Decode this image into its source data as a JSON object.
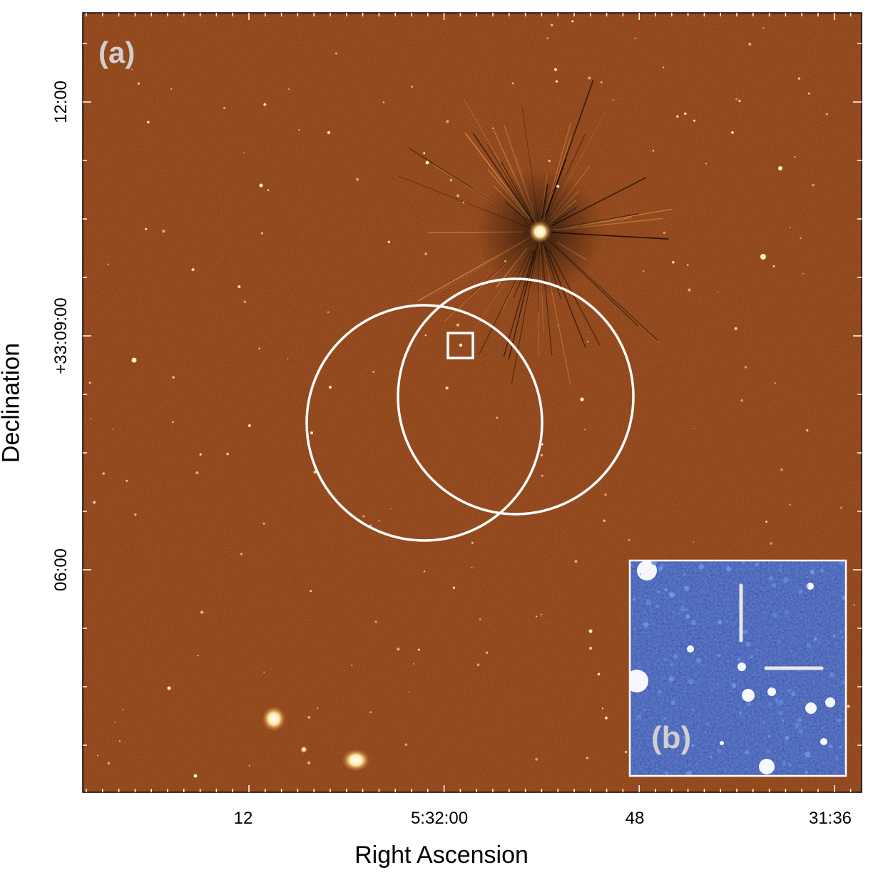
{
  "figure": {
    "panel_a_label": "(a)",
    "panel_b_label": "(b)",
    "x_axis_title": "Right Ascension",
    "y_axis_title": "Declination",
    "x_tick_labels": [
      "12",
      "5:32:00",
      "48",
      "31:36"
    ],
    "y_tick_labels": [
      "12:00",
      "+33:09:00",
      "06:00"
    ]
  },
  "colors": {
    "radio_map_background": "#5a1604",
    "source_highlight": "#fff2c8",
    "inset_background": "#10309a",
    "inset_highlight": "#ffffff",
    "overlay_lines": "#ffffff"
  },
  "overlays": {
    "error_circles": 2,
    "target_box": 1,
    "inset_crosshair_marks": 2
  }
}
